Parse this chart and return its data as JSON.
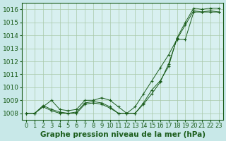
{
  "title": "Graphe pression niveau de la mer (hPa)",
  "background_color": "#c8e8e8",
  "plot_bg_color": "#d8f0f0",
  "grid_color": "#a8c8a8",
  "line_color": "#1a5c1a",
  "marker_color": "#1a5c1a",
  "xlim": [
    -0.5,
    23.5
  ],
  "ylim": [
    1007.5,
    1016.5
  ],
  "xticks": [
    0,
    1,
    2,
    3,
    4,
    5,
    6,
    7,
    8,
    9,
    10,
    11,
    12,
    13,
    14,
    15,
    16,
    17,
    18,
    19,
    20,
    21,
    22,
    23
  ],
  "yticks": [
    1008,
    1009,
    1010,
    1011,
    1012,
    1013,
    1014,
    1015,
    1016
  ],
  "series": [
    [
      1008.0,
      1008.0,
      1008.6,
      1008.3,
      1008.1,
      1008.0,
      1008.1,
      1008.8,
      1008.9,
      1008.8,
      1008.5,
      1008.0,
      1008.0,
      1008.0,
      1008.8,
      1009.8,
      1010.5,
      1011.6,
      1013.8,
      1015.0,
      1016.1,
      1016.0,
      1016.1,
      1016.1
    ],
    [
      1008.0,
      1008.0,
      1008.5,
      1008.2,
      1008.0,
      1008.0,
      1008.0,
      1008.7,
      1008.8,
      1008.7,
      1008.4,
      1008.0,
      1008.0,
      1008.0,
      1008.7,
      1009.5,
      1010.4,
      1011.8,
      1013.7,
      1014.8,
      1015.9,
      1015.8,
      1015.9,
      1015.8
    ],
    [
      1008.0,
      1008.0,
      1008.5,
      1009.0,
      1008.3,
      1008.2,
      1008.3,
      1009.0,
      1009.0,
      1009.2,
      1009.0,
      1008.5,
      1008.0,
      1008.5,
      1009.5,
      1010.5,
      1011.5,
      1012.5,
      1013.7,
      1013.7,
      1015.8,
      1015.8,
      1015.8,
      1015.8
    ]
  ],
  "title_fontsize": 7.5,
  "ytick_fontsize": 6.5,
  "xtick_fontsize": 6.0
}
